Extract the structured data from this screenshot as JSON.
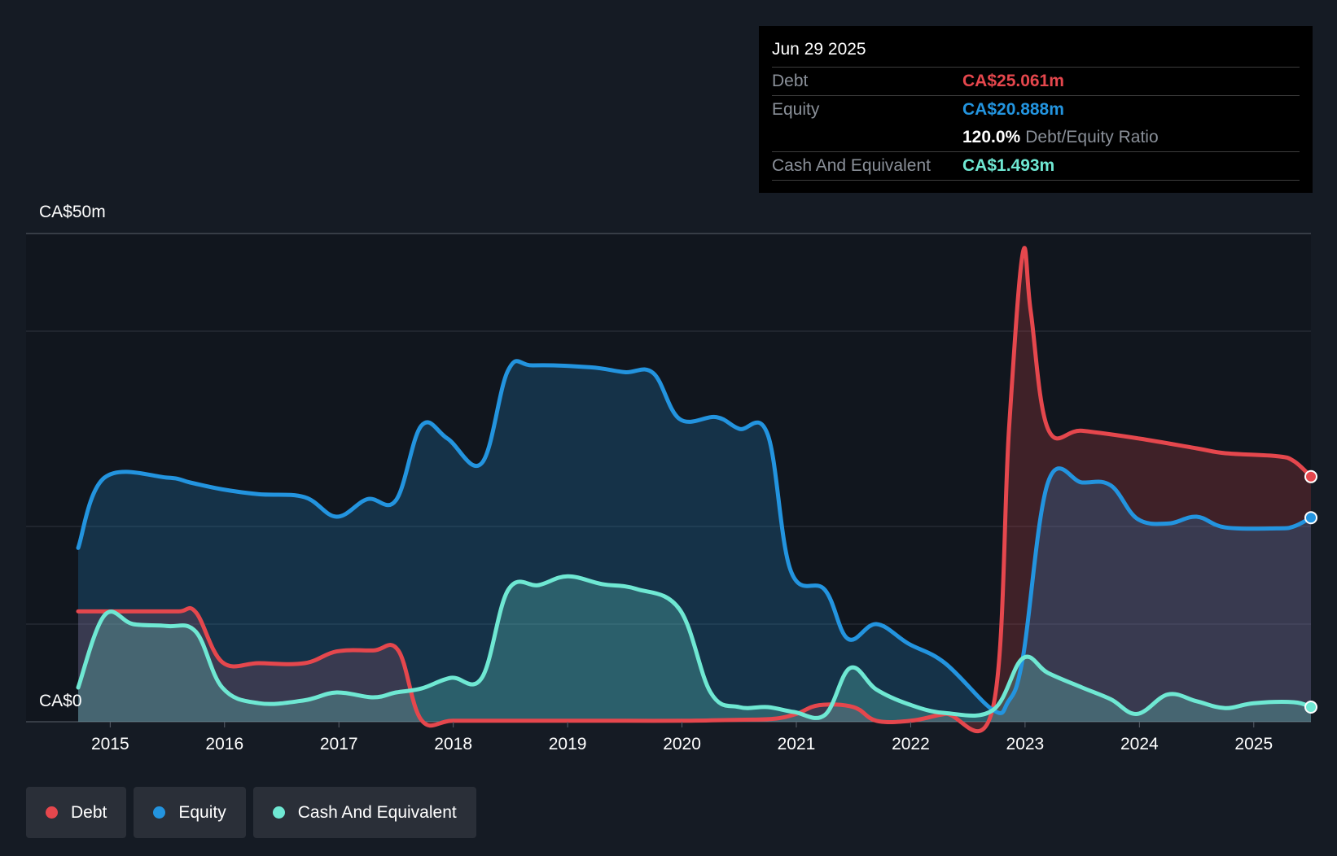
{
  "tooltip": {
    "date": "Jun 29 2025",
    "debt_label": "Debt",
    "debt_value": "CA$25.061m",
    "equity_label": "Equity",
    "equity_value": "CA$20.888m",
    "ratio_value": "120.0%",
    "ratio_label": "Debt/Equity Ratio",
    "cash_label": "Cash And Equivalent",
    "cash_value": "CA$1.493m"
  },
  "legend": {
    "debt": "Debt",
    "equity": "Equity",
    "cash": "Cash And Equivalent"
  },
  "colors": {
    "debt": "#e5474d",
    "equity": "#2394df",
    "cash": "#6fe8d3"
  },
  "chart_data": {
    "type": "area",
    "y_top_label": "CA$50m",
    "y_bottom_label": "CA$0",
    "ylim": [
      0,
      50
    ],
    "xlim": [
      2014.72,
      2025.5
    ],
    "x_ticks": [
      "2015",
      "2016",
      "2017",
      "2018",
      "2019",
      "2020",
      "2021",
      "2022",
      "2023",
      "2024",
      "2025"
    ],
    "grid": true,
    "legend_position": "bottom-left",
    "series": [
      {
        "name": "Debt",
        "points": [
          [
            2014.72,
            11.3
          ],
          [
            2015.0,
            11.3
          ],
          [
            2015.3,
            11.3
          ],
          [
            2015.6,
            11.3
          ],
          [
            2015.75,
            11.2
          ],
          [
            2015.98,
            6.1
          ],
          [
            2016.3,
            6.0
          ],
          [
            2016.7,
            6.0
          ],
          [
            2016.98,
            7.2
          ],
          [
            2017.3,
            7.3
          ],
          [
            2017.52,
            7.3
          ],
          [
            2017.72,
            0.2
          ],
          [
            2018.0,
            0.1
          ],
          [
            2018.5,
            0.1
          ],
          [
            2019.0,
            0.1
          ],
          [
            2019.5,
            0.1
          ],
          [
            2020.0,
            0.1
          ],
          [
            2020.5,
            0.2
          ],
          [
            2020.8,
            0.3
          ],
          [
            2021.0,
            0.8
          ],
          [
            2021.2,
            1.7
          ],
          [
            2021.5,
            1.5
          ],
          [
            2021.7,
            0.1
          ],
          [
            2022.0,
            0.1
          ],
          [
            2022.3,
            0.8
          ],
          [
            2022.72,
            1.5
          ],
          [
            2022.86,
            30.0
          ],
          [
            2022.98,
            48.0
          ],
          [
            2023.05,
            42.0
          ],
          [
            2023.2,
            30.0
          ],
          [
            2023.5,
            29.8
          ],
          [
            2024.0,
            29.0
          ],
          [
            2024.5,
            28.0
          ],
          [
            2024.75,
            27.5
          ],
          [
            2025.2,
            27.2
          ],
          [
            2025.35,
            26.7
          ],
          [
            2025.5,
            25.1
          ]
        ]
      },
      {
        "name": "Equity",
        "points": [
          [
            2014.72,
            17.8
          ],
          [
            2014.95,
            25.0
          ],
          [
            2015.5,
            25.0
          ],
          [
            2015.7,
            24.5
          ],
          [
            2015.98,
            23.8
          ],
          [
            2016.3,
            23.3
          ],
          [
            2016.7,
            23.0
          ],
          [
            2016.98,
            21.0
          ],
          [
            2017.25,
            22.8
          ],
          [
            2017.5,
            22.7
          ],
          [
            2017.72,
            30.3
          ],
          [
            2017.95,
            29.0
          ],
          [
            2018.25,
            26.5
          ],
          [
            2018.48,
            36.0
          ],
          [
            2018.7,
            36.5
          ],
          [
            2019.2,
            36.3
          ],
          [
            2019.5,
            35.8
          ],
          [
            2019.75,
            35.7
          ],
          [
            2019.98,
            31.0
          ],
          [
            2020.3,
            31.2
          ],
          [
            2020.5,
            30.0
          ],
          [
            2020.75,
            29.4
          ],
          [
            2020.95,
            15.5
          ],
          [
            2021.25,
            13.5
          ],
          [
            2021.45,
            8.5
          ],
          [
            2021.7,
            10.0
          ],
          [
            2021.98,
            8.0
          ],
          [
            2022.3,
            6.0
          ],
          [
            2022.72,
            1.2
          ],
          [
            2022.85,
            2.0
          ],
          [
            2022.98,
            6.5
          ],
          [
            2023.2,
            24.5
          ],
          [
            2023.5,
            24.5
          ],
          [
            2023.75,
            24.2
          ],
          [
            2023.98,
            20.8
          ],
          [
            2024.25,
            20.3
          ],
          [
            2024.5,
            21.0
          ],
          [
            2024.75,
            19.9
          ],
          [
            2025.2,
            19.8
          ],
          [
            2025.35,
            20.0
          ],
          [
            2025.5,
            20.9
          ]
        ]
      },
      {
        "name": "Cash And Equivalent",
        "points": [
          [
            2014.72,
            3.5
          ],
          [
            2014.95,
            10.9
          ],
          [
            2015.2,
            10.0
          ],
          [
            2015.5,
            9.8
          ],
          [
            2015.75,
            9.2
          ],
          [
            2015.98,
            3.5
          ],
          [
            2016.3,
            1.9
          ],
          [
            2016.7,
            2.2
          ],
          [
            2016.98,
            3.0
          ],
          [
            2017.3,
            2.5
          ],
          [
            2017.5,
            3.0
          ],
          [
            2017.72,
            3.4
          ],
          [
            2017.98,
            4.5
          ],
          [
            2018.25,
            4.5
          ],
          [
            2018.48,
            13.5
          ],
          [
            2018.75,
            14.0
          ],
          [
            2019.0,
            14.9
          ],
          [
            2019.3,
            14.1
          ],
          [
            2019.6,
            13.6
          ],
          [
            2019.98,
            11.5
          ],
          [
            2020.25,
            3.0
          ],
          [
            2020.5,
            1.5
          ],
          [
            2020.75,
            1.5
          ],
          [
            2020.98,
            1.0
          ],
          [
            2021.25,
            0.7
          ],
          [
            2021.47,
            5.5
          ],
          [
            2021.7,
            3.3
          ],
          [
            2021.98,
            1.8
          ],
          [
            2022.3,
            0.9
          ],
          [
            2022.72,
            1.2
          ],
          [
            2022.98,
            6.5
          ],
          [
            2023.2,
            5.0
          ],
          [
            2023.5,
            3.5
          ],
          [
            2023.75,
            2.3
          ],
          [
            2023.98,
            0.8
          ],
          [
            2024.25,
            2.8
          ],
          [
            2024.5,
            2.1
          ],
          [
            2024.75,
            1.4
          ],
          [
            2025.0,
            1.9
          ],
          [
            2025.35,
            2.0
          ],
          [
            2025.5,
            1.5
          ]
        ]
      }
    ]
  }
}
